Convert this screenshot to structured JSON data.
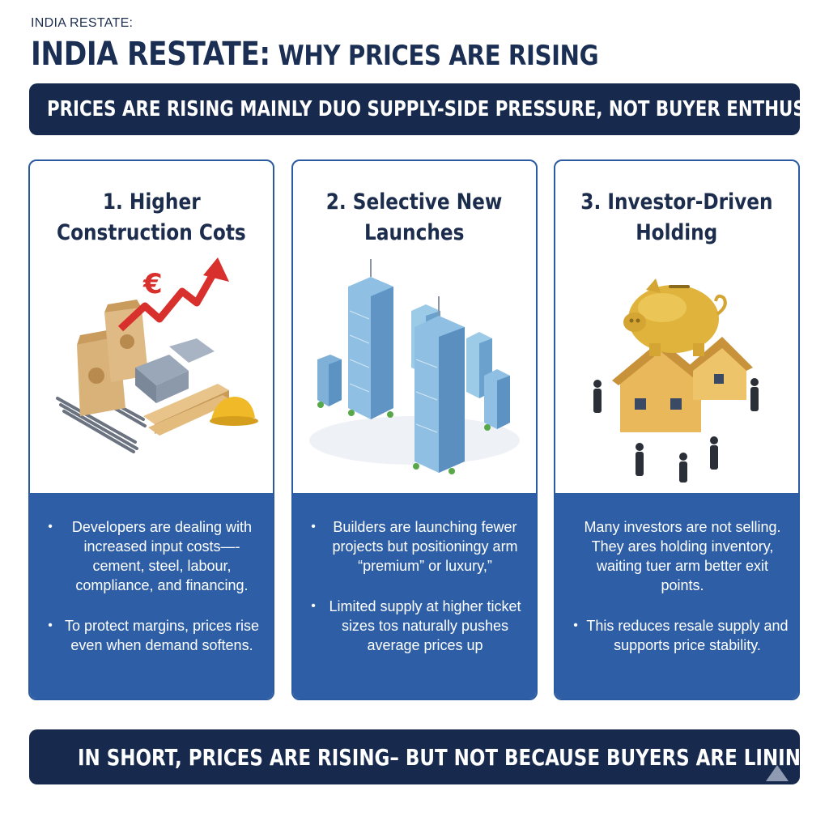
{
  "header": {
    "kicker": "INDIA RESTATE:",
    "title_part1": "INDIA RESTATE:",
    "title_part2": " WHY PRICES ARE RISING",
    "subtitle": "PRICES ARE RISING MAINLY DUO SUPPLY-SIDE PRESSURE, NOT BUYER ENTHUSAM"
  },
  "cards": [
    {
      "title_line1": "1. Higher",
      "title_line2": "Construction Cots",
      "illustration": "construction-materials-rising-cost-icon",
      "bullets": [
        "Developers are dealing with increased input costs—-cement, steel, labour, compliance, and financing.",
        "To protect margins, prices rise even when demand softens."
      ]
    },
    {
      "title_line1": "2. Selective New",
      "title_line2": "Launches",
      "illustration": "high-rise-towers-icon",
      "bullets": [
        "Builders are launching fewer projects but positioningy arm “premium” or luxury,”",
        "Limited supply at higher ticket sizes tos naturally pushes average prices up"
      ]
    },
    {
      "title_line1": "3. Investor-Driven",
      "title_line2": "Holding",
      "illustration": "piggy-bank-house-investors-icon",
      "paragraph": "Many investors are not selling. They ares holding inventory, waiting tuer arm better exit points.",
      "bullets": [
        "This reduces resale supply and supports price stability."
      ]
    }
  ],
  "footer": {
    "summary": "IN SHORT, PRICES ARE RISING– BUT NOT BECAUSE BUYERS ARE LINING UP"
  },
  "colors": {
    "navy": "#172a4d",
    "card_blue": "#2e5fa6",
    "card_border": "#2c5aa0",
    "accent_red": "#d8302c",
    "gold": "#e0b43c"
  }
}
